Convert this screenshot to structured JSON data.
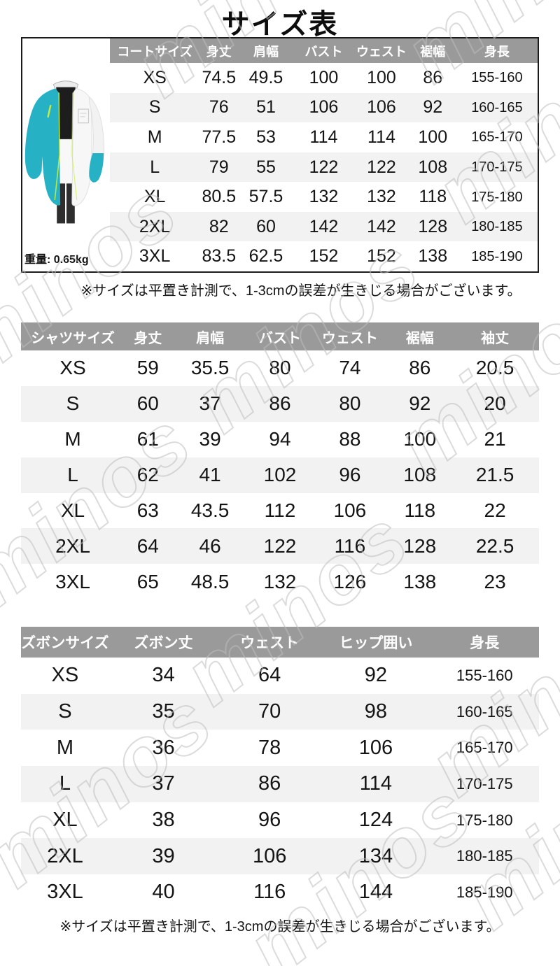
{
  "title": "サイズ表",
  "watermark": "minos",
  "weight": {
    "label": "重量:",
    "value": "0.65kg"
  },
  "note": "※サイズは平置き計測で、1-3cmの誤差が生きじる場合がございます。",
  "colors": {
    "header_bg": "#9a9a9a",
    "row_stripe": "#f2f2f2",
    "table_border": "#1b1b1b",
    "jacket_teal": "#26b2c4",
    "jacket_neon": "#c7ee3e"
  },
  "coat_table": {
    "headers": [
      "コートサイズ",
      "身丈",
      "肩幅",
      "バスト",
      "ウェスト",
      "裾幅",
      "身長"
    ],
    "rows": [
      [
        "XS",
        "74.5",
        "49.5",
        "100",
        "100",
        "86",
        "155-160"
      ],
      [
        "S",
        "76",
        "51",
        "106",
        "106",
        "92",
        "160-165"
      ],
      [
        "M",
        "77.5",
        "53",
        "114",
        "114",
        "100",
        "165-170"
      ],
      [
        "L",
        "79",
        "55",
        "122",
        "122",
        "108",
        "170-175"
      ],
      [
        "XL",
        "80.5",
        "57.5",
        "132",
        "132",
        "118",
        "175-180"
      ],
      [
        "2XL",
        "82",
        "60",
        "142",
        "142",
        "128",
        "180-185"
      ],
      [
        "3XL",
        "83.5",
        "62.5",
        "152",
        "152",
        "138",
        "185-190"
      ]
    ]
  },
  "shirt_table": {
    "headers": [
      "シャツサイズ",
      "身丈",
      "肩幅",
      "バスト",
      "ウェスト",
      "裾幅",
      "袖丈"
    ],
    "rows": [
      [
        "XS",
        "59",
        "35.5",
        "80",
        "74",
        "86",
        "20.5"
      ],
      [
        "S",
        "60",
        "37",
        "86",
        "80",
        "92",
        "20"
      ],
      [
        "M",
        "61",
        "39",
        "94",
        "88",
        "100",
        "21"
      ],
      [
        "L",
        "62",
        "41",
        "102",
        "96",
        "108",
        "21.5"
      ],
      [
        "XL",
        "63",
        "43.5",
        "112",
        "106",
        "118",
        "22"
      ],
      [
        "2XL",
        "64",
        "46",
        "122",
        "116",
        "128",
        "22.5"
      ],
      [
        "3XL",
        "65",
        "48.5",
        "132",
        "126",
        "138",
        "23"
      ]
    ]
  },
  "pants_table": {
    "headers": [
      "ズボンサイズ",
      "ズボン丈",
      "ウェスト",
      "ヒップ囲い",
      "身長"
    ],
    "rows": [
      [
        "XS",
        "34",
        "64",
        "92",
        "155-160"
      ],
      [
        "S",
        "35",
        "70",
        "98",
        "160-165"
      ],
      [
        "M",
        "36",
        "78",
        "106",
        "165-170"
      ],
      [
        "L",
        "37",
        "86",
        "114",
        "170-175"
      ],
      [
        "XL",
        "38",
        "96",
        "124",
        "175-180"
      ],
      [
        "2XL",
        "39",
        "106",
        "134",
        "180-185"
      ],
      [
        "3XL",
        "40",
        "116",
        "144",
        "185-190"
      ]
    ]
  }
}
